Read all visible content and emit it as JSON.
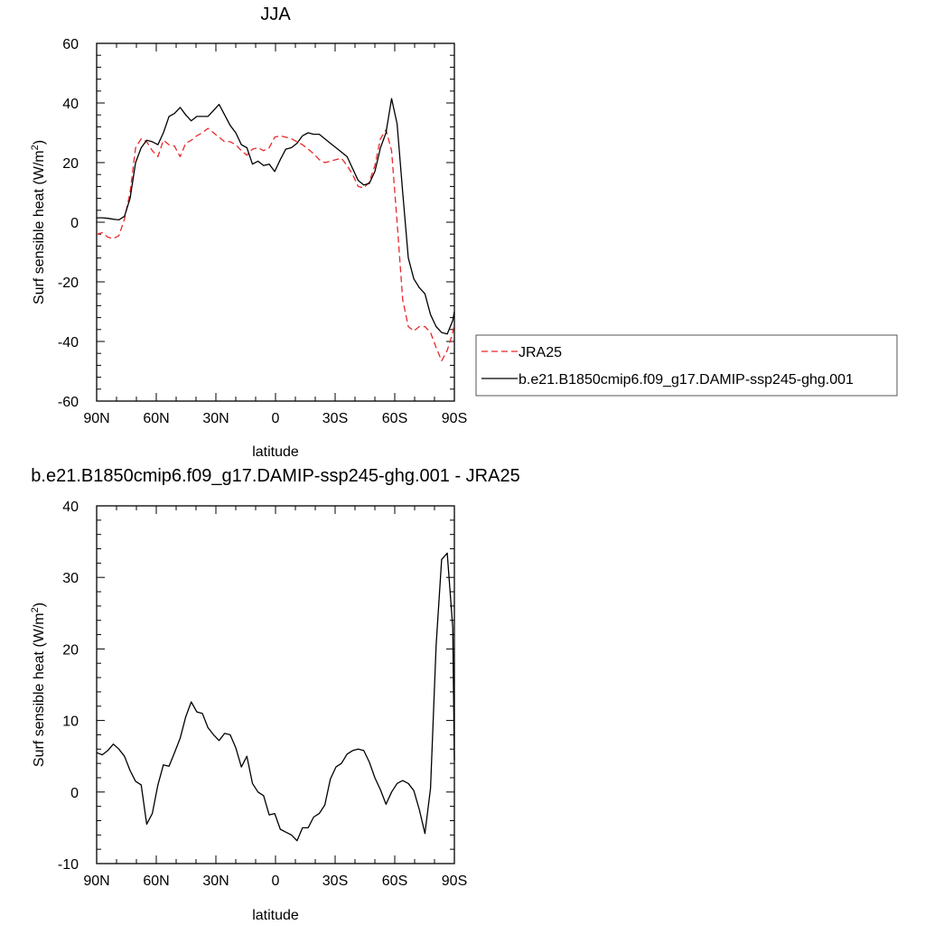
{
  "chart_data": [
    {
      "type": "line",
      "title": "JJA",
      "xlabel": "latitude",
      "ylabel": "Surf sensible heat (W/m²)",
      "ylabel_main": "Surf sensible heat (W/m",
      "ylabel_sup": "2",
      "ylabel_end": ")",
      "xlim": [
        90,
        -90
      ],
      "ylim": [
        -60,
        60
      ],
      "xticks": [
        90,
        60,
        30,
        0,
        -30,
        -60,
        -90
      ],
      "xtick_labels": [
        "90N",
        "60N",
        "30N",
        "0",
        "30S",
        "60S",
        "90S"
      ],
      "yticks": [
        -60,
        -40,
        -20,
        0,
        20,
        40,
        60
      ],
      "ytick_labels": [
        "-60",
        "-40",
        "-20",
        "0",
        "20",
        "40",
        "60"
      ],
      "legend_position": "outside-right",
      "series": [
        {
          "name": "JRA25",
          "color": "#e8292b",
          "dash": "dashed",
          "x": [
            90,
            87.2,
            84.4,
            81.6,
            78.8,
            76,
            73.2,
            70.4,
            67.6,
            64.8,
            62,
            59.2,
            56.4,
            53.6,
            50.8,
            48,
            45.2,
            42.4,
            39.6,
            36.8,
            34,
            31.2,
            28.4,
            25.6,
            22.8,
            20,
            17.2,
            14.4,
            11.6,
            8.8,
            6,
            3.2,
            0.4,
            -2.4,
            -5.2,
            -8,
            -10.8,
            -13.6,
            -16.4,
            -19.2,
            -22,
            -24.8,
            -27.6,
            -30.4,
            -33.2,
            -36,
            -38.8,
            -41.6,
            -44.4,
            -47.2,
            -50,
            -52.8,
            -55.6,
            -58.4,
            -61.2,
            -64,
            -66.8,
            -69.6,
            -72.4,
            -75.2,
            -78,
            -80.8,
            -83.6,
            -86.4,
            -89.2,
            -90
          ],
          "values": [
            -4,
            -3.5,
            -5,
            -5.5,
            -4.5,
            1,
            10,
            25,
            28,
            27,
            24,
            22,
            27.5,
            26,
            25.5,
            22,
            26.5,
            27.5,
            29,
            30,
            31.5,
            30,
            28.5,
            27,
            27,
            26,
            24,
            22.5,
            24.5,
            25,
            24,
            25,
            28.5,
            29,
            28.5,
            28,
            27,
            26,
            24.5,
            23,
            21,
            20,
            20.5,
            21,
            21.5,
            19,
            16,
            12,
            11.5,
            13.5,
            19,
            28,
            31,
            24,
            0,
            -26,
            -35,
            -36.5,
            -35,
            -35,
            -37,
            -42,
            -46.5,
            -43,
            -37,
            -34
          ]
        },
        {
          "name": "b.e21.B1850cmip6.f09_g17.DAMIP-ssp245-ghg.001",
          "color": "#000000",
          "dash": "solid",
          "x": [
            90,
            87.2,
            84.4,
            81.6,
            78.8,
            76,
            73.2,
            70.4,
            67.6,
            64.8,
            62,
            59.2,
            56.4,
            53.6,
            50.8,
            48,
            45.2,
            42.4,
            39.6,
            36.8,
            34,
            31.2,
            28.4,
            25.6,
            22.8,
            20,
            17.2,
            14.4,
            11.6,
            8.8,
            6,
            3.2,
            0.4,
            -2.4,
            -5.2,
            -8,
            -10.8,
            -13.6,
            -16.4,
            -19.2,
            -22,
            -24.8,
            -27.6,
            -30.4,
            -33.2,
            -36,
            -38.8,
            -41.6,
            -44.4,
            -47.2,
            -50,
            -52.8,
            -55.6,
            -58.4,
            -61.2,
            -64,
            -66.8,
            -69.6,
            -72.4,
            -75.2,
            -78,
            -80.8,
            -83.6,
            -86.4,
            -89.2,
            -90
          ],
          "values": [
            1.5,
            1.5,
            1.3,
            1,
            0.8,
            2,
            8,
            20,
            25,
            27.5,
            27,
            26,
            30,
            35.5,
            36.5,
            38.5,
            36,
            34,
            35.5,
            35.5,
            35.5,
            37.5,
            39.5,
            36,
            32.5,
            30,
            26,
            25,
            19.5,
            20.5,
            19,
            19.5,
            17,
            21,
            24.5,
            25,
            26.5,
            29,
            30,
            29.5,
            29.5,
            28,
            26.5,
            25,
            23.5,
            22,
            18,
            14,
            12.5,
            13,
            17,
            25,
            30,
            41.5,
            33,
            10,
            -12,
            -19,
            -22,
            -24,
            -31,
            -35,
            -37,
            -37.5,
            -33,
            -30
          ]
        }
      ]
    },
    {
      "type": "line",
      "title": "b.e21.B1850cmip6.f09_g17.DAMIP-ssp245-ghg.001 - JRA25",
      "xlabel": "latitude",
      "ylabel": "Surf sensible heat (W/m²)",
      "ylabel_main": "Surf sensible heat (W/m",
      "ylabel_sup": "2",
      "ylabel_end": ")",
      "xlim": [
        90,
        -90
      ],
      "ylim": [
        -10,
        40
      ],
      "xticks": [
        90,
        60,
        30,
        0,
        -30,
        -60,
        -90
      ],
      "xtick_labels": [
        "90N",
        "60N",
        "30N",
        "0",
        "30S",
        "60S",
        "90S"
      ],
      "yticks": [
        -10,
        0,
        10,
        20,
        30,
        40
      ],
      "ytick_labels": [
        "-10",
        "0",
        "10",
        "20",
        "30",
        "40"
      ],
      "series": [
        {
          "color": "#000000",
          "dash": "solid",
          "x": [
            90,
            87.2,
            84.4,
            81.6,
            78.8,
            76,
            73.2,
            70.4,
            67.6,
            64.8,
            62,
            59.2,
            56.4,
            53.6,
            50.8,
            48,
            45.2,
            42.4,
            39.6,
            36.8,
            34,
            31.2,
            28.4,
            25.6,
            22.8,
            20,
            17.2,
            14.4,
            11.6,
            8.8,
            6,
            3.2,
            0.4,
            -2.4,
            -5.2,
            -8,
            -10.8,
            -13.6,
            -16.4,
            -19.2,
            -22,
            -24.8,
            -27.6,
            -30.4,
            -33.2,
            -36,
            -38.8,
            -41.6,
            -44.4,
            -47.2,
            -50,
            -52.8,
            -55.6,
            -58.4,
            -61.2,
            -64,
            -66.8,
            -69.6,
            -72.4,
            -75.2,
            -78,
            -80.8,
            -83.6,
            -86.4,
            -89.2,
            -90
          ],
          "values": [
            5.5,
            5.2,
            5.8,
            6.7,
            6,
            5,
            3,
            1.5,
            1,
            -4.5,
            -3,
            1,
            3.8,
            3.6,
            5.5,
            7.5,
            10.5,
            12.6,
            11.2,
            11,
            9,
            8,
            7.2,
            8.2,
            8,
            6.2,
            3.5,
            5,
            1.2,
            0,
            -0.5,
            -3.2,
            -3,
            -5.2,
            -5.6,
            -6,
            -6.8,
            -5,
            -5,
            -3.5,
            -3,
            -1.8,
            1.8,
            3.5,
            4,
            5.3,
            5.8,
            6,
            5.8,
            4.2,
            2,
            0.3,
            -1.7,
            0,
            1.2,
            1.6,
            1.2,
            0.2,
            -2.5,
            -5.8,
            0.5,
            20.5,
            32.5,
            33.4,
            23,
            4.5
          ]
        }
      ]
    }
  ]
}
